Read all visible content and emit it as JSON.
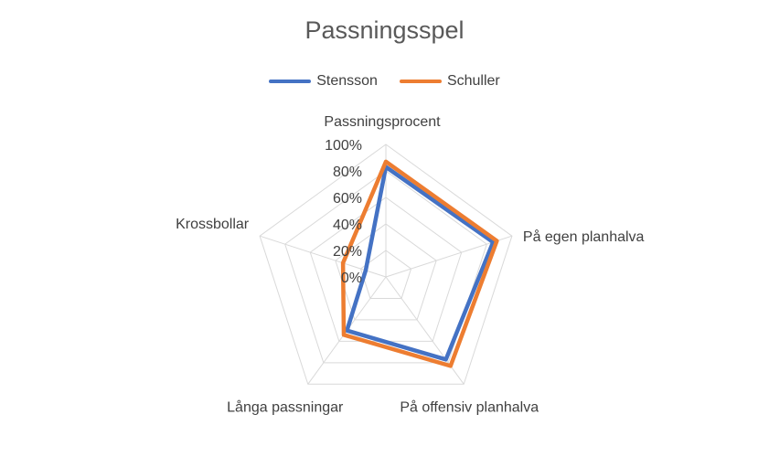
{
  "chart_data": {
    "type": "radar",
    "title": "Passningsspel",
    "categories": [
      "Passningsprocent",
      "På egen planhalva",
      "På offensiv planhalva",
      "Långa passningar",
      "Krossbollar"
    ],
    "series": [
      {
        "name": "Stensson",
        "values": [
          0.83,
          0.85,
          0.77,
          0.5,
          0.16
        ]
      },
      {
        "name": "Schuller",
        "values": [
          0.87,
          0.88,
          0.83,
          0.54,
          0.34
        ]
      }
    ],
    "rlim": [
      0,
      1
    ],
    "ticks": [
      "0%",
      "20%",
      "40%",
      "60%",
      "80%",
      "100%"
    ],
    "legend_position": "top",
    "colors": {
      "Stensson": "#4472C4",
      "Schuller": "#ED7D31",
      "grid": "#D9D9D9"
    }
  }
}
